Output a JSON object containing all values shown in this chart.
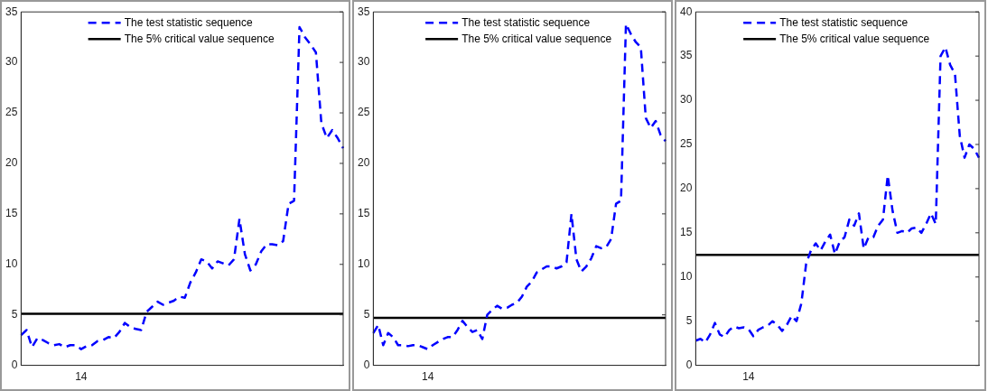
{
  "chart_data": [
    {
      "type": "line",
      "categories": [
        null,
        null,
        null,
        null,
        null,
        null,
        null,
        null,
        null,
        null,
        null,
        "14",
        null,
        null,
        null,
        null,
        null,
        null,
        null,
        null,
        null,
        null,
        null,
        null,
        null,
        null,
        null,
        null,
        null,
        null,
        null,
        null,
        null,
        null,
        null,
        null,
        null,
        null,
        null,
        null,
        null,
        null,
        null,
        null,
        null,
        null,
        null,
        null,
        null,
        null,
        null,
        null,
        null,
        null,
        null,
        null,
        null,
        null,
        null,
        null
      ],
      "ylim": [
        0,
        35
      ],
      "yticks": [
        0,
        5,
        10,
        15,
        20,
        25,
        30,
        35
      ],
      "grid": false,
      "legend": "top",
      "marker": "none",
      "series": [
        {
          "name": "The test statistic sequence",
          "color": "#0000ff",
          "line_style": "dashed",
          "values": [
            3,
            3.5,
            1.8,
            2.7,
            2.5,
            2.2,
            2,
            2.1,
            1.8,
            2,
            2,
            1.6,
            1.9,
            2,
            2.4,
            2.5,
            2.8,
            2.7,
            3.3,
            4.2,
            3.8,
            3.6,
            3.5,
            5.3,
            5.8,
            6.3,
            6,
            6.2,
            6.4,
            6.8,
            6.7,
            8.2,
            9.2,
            10.5,
            10.3,
            9.6,
            10.3,
            10.1,
            9.9,
            10.5,
            14.5,
            11,
            9.4,
            10,
            11.3,
            12,
            12,
            11.9,
            12.3,
            16,
            16.3,
            33.5,
            32.5,
            31.8,
            31,
            24,
            22.5,
            23.3,
            22.5,
            21.5
          ]
        },
        {
          "name": "The 5% critical value sequence",
          "color": "#000000",
          "line_style": "solid",
          "values": [
            5.1,
            5.1,
            5.1,
            5.1,
            5.1,
            5.1,
            5.1,
            5.1,
            5.1,
            5.1,
            5.1,
            5.1,
            5.1,
            5.1,
            5.1,
            5.1,
            5.1,
            5.1,
            5.1,
            5.1,
            5.1,
            5.1,
            5.1,
            5.1,
            5.1,
            5.1,
            5.1,
            5.1,
            5.1,
            5.1,
            5.1,
            5.1,
            5.1,
            5.1,
            5.1,
            5.1,
            5.1,
            5.1,
            5.1,
            5.1,
            5.1,
            5.1,
            5.1,
            5.1,
            5.1,
            5.1,
            5.1,
            5.1,
            5.1,
            5.1,
            5.1,
            5.1,
            5.1,
            5.1,
            5.1,
            5.1,
            5.1,
            5.1,
            5.1,
            5.1
          ]
        }
      ]
    },
    {
      "type": "line",
      "categories": [
        null,
        null,
        null,
        null,
        null,
        null,
        null,
        null,
        null,
        null,
        null,
        "14",
        null,
        null,
        null,
        null,
        null,
        null,
        null,
        null,
        null,
        null,
        null,
        null,
        null,
        null,
        null,
        null,
        null,
        null,
        null,
        null,
        null,
        null,
        null,
        null,
        null,
        null,
        null,
        null,
        null,
        null,
        null,
        null,
        null,
        null,
        null,
        null,
        null,
        null,
        null,
        null,
        null,
        null,
        null,
        null,
        null,
        null,
        null,
        null
      ],
      "ylim": [
        0,
        35
      ],
      "yticks": [
        0,
        5,
        10,
        15,
        20,
        25,
        30,
        35
      ],
      "grid": false,
      "legend": "top",
      "marker": "none",
      "series": [
        {
          "name": "The test statistic sequence",
          "color": "#0000ff",
          "line_style": "dashed",
          "values": [
            3.2,
            4,
            2,
            3.2,
            2.8,
            2,
            2,
            1.9,
            2,
            2,
            1.8,
            1.6,
            2,
            2.3,
            2.6,
            2.8,
            2.8,
            3.5,
            4.4,
            3.8,
            3.3,
            3.5,
            2.6,
            5,
            5.5,
            5.9,
            5.6,
            5.7,
            6,
            6.2,
            6.8,
            7.8,
            8.3,
            9.2,
            9.5,
            9.8,
            9.8,
            9.6,
            9.8,
            10.2,
            15,
            10.5,
            9.3,
            9.8,
            10.6,
            11.8,
            11.6,
            11.7,
            12.5,
            16,
            16.3,
            33.8,
            32.8,
            32,
            31.5,
            24.5,
            23.5,
            24.2,
            22.8,
            22.2
          ]
        },
        {
          "name": "The 5% critical value sequence",
          "color": "#000000",
          "line_style": "solid",
          "values": [
            4.7,
            4.7,
            4.7,
            4.7,
            4.7,
            4.7,
            4.7,
            4.7,
            4.7,
            4.7,
            4.7,
            4.7,
            4.7,
            4.7,
            4.7,
            4.7,
            4.7,
            4.7,
            4.7,
            4.7,
            4.7,
            4.7,
            4.7,
            4.7,
            4.7,
            4.7,
            4.7,
            4.7,
            4.7,
            4.7,
            4.7,
            4.7,
            4.7,
            4.7,
            4.7,
            4.7,
            4.7,
            4.7,
            4.7,
            4.7,
            4.7,
            4.7,
            4.7,
            4.7,
            4.7,
            4.7,
            4.7,
            4.7,
            4.7,
            4.7,
            4.7,
            4.7,
            4.7,
            4.7,
            4.7,
            4.7,
            4.7,
            4.7,
            4.7,
            4.7
          ]
        }
      ]
    },
    {
      "type": "line",
      "categories": [
        null,
        null,
        null,
        null,
        null,
        null,
        null,
        null,
        null,
        null,
        null,
        "14",
        null,
        null,
        null,
        null,
        null,
        null,
        null,
        null,
        null,
        null,
        null,
        null,
        null,
        null,
        null,
        null,
        null,
        null,
        null,
        null,
        null,
        null,
        null,
        null,
        null,
        null,
        null,
        null,
        null,
        null,
        null,
        null,
        null,
        null,
        null,
        null,
        null,
        null,
        null,
        null,
        null,
        null,
        null,
        null,
        null,
        null,
        null,
        null
      ],
      "ylim": [
        0,
        40
      ],
      "yticks": [
        0,
        5,
        10,
        15,
        20,
        25,
        30,
        35,
        40
      ],
      "grid": false,
      "legend": "top",
      "marker": "none",
      "series": [
        {
          "name": "The test statistic sequence",
          "color": "#0000ff",
          "line_style": "dashed",
          "values": [
            2.8,
            3,
            2.6,
            3.5,
            4.8,
            3.5,
            3.2,
            4,
            4.4,
            4.2,
            4.3,
            4.1,
            3.3,
            4,
            4.3,
            4.5,
            5,
            4.6,
            3.9,
            4.6,
            5.6,
            5,
            7,
            11.5,
            13,
            13.8,
            13,
            14,
            14.8,
            12.6,
            14,
            14.5,
            16.5,
            15.8,
            17.2,
            13.2,
            14.5,
            14.5,
            15.8,
            16.5,
            21.5,
            17.5,
            15,
            15.2,
            15,
            15.5,
            15.6,
            15,
            16,
            17.2,
            16,
            35,
            36,
            34,
            33,
            26,
            23.5,
            25,
            24.5,
            23.5
          ]
        },
        {
          "name": "The 5% critical value sequence",
          "color": "#000000",
          "line_style": "solid",
          "values": [
            12.5,
            12.5,
            12.5,
            12.5,
            12.5,
            12.5,
            12.5,
            12.5,
            12.5,
            12.5,
            12.5,
            12.5,
            12.5,
            12.5,
            12.5,
            12.5,
            12.5,
            12.5,
            12.5,
            12.5,
            12.5,
            12.5,
            12.5,
            12.5,
            12.5,
            12.5,
            12.5,
            12.5,
            12.5,
            12.5,
            12.5,
            12.5,
            12.5,
            12.5,
            12.5,
            12.5,
            12.5,
            12.5,
            12.5,
            12.5,
            12.5,
            12.5,
            12.5,
            12.5,
            12.5,
            12.5,
            12.5,
            12.5,
            12.5,
            12.5,
            12.5,
            12.5,
            12.5,
            12.5,
            12.5,
            12.5,
            12.5,
            12.5,
            12.5,
            12.5
          ]
        }
      ]
    }
  ]
}
